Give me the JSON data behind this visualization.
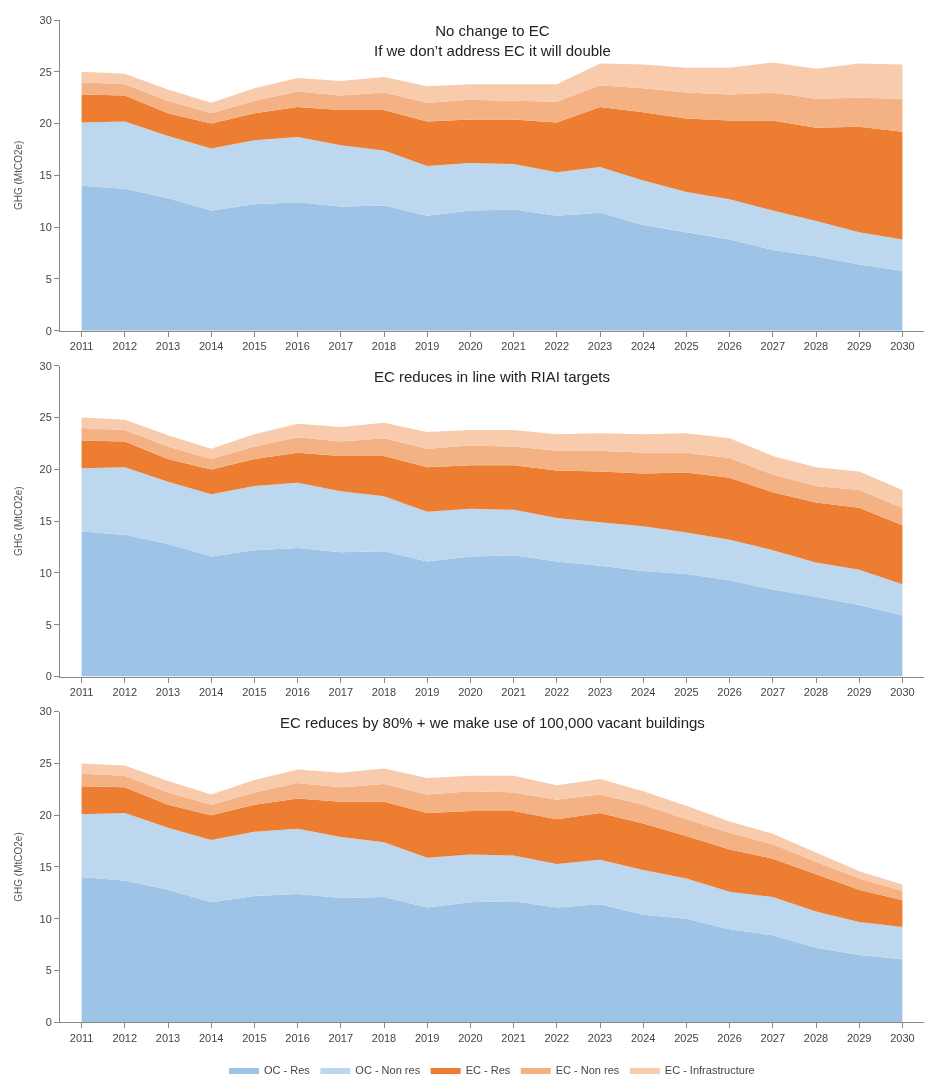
{
  "chart_data": [
    {
      "type": "area",
      "stacked": true,
      "title": "No change to EC",
      "subtitle": "If we don’t address EC it will double",
      "ylabel": "GHG (MtCO2e)",
      "ylim": [
        0,
        30
      ],
      "yticks": [
        0,
        5,
        10,
        15,
        20,
        25,
        30
      ],
      "legend": "bottom",
      "categories": [
        "2011",
        "2012",
        "2013",
        "2014",
        "2015",
        "2016",
        "2017",
        "2018",
        "2019",
        "2020",
        "2021",
        "2022",
        "2023",
        "2024",
        "2025",
        "2026",
        "2027",
        "2028",
        "2029",
        "2030"
      ],
      "series": [
        {
          "name": "OC - Res",
          "color": "#9dc3e6",
          "values": [
            14,
            13.7,
            12.8,
            11.6,
            12.2,
            12.4,
            12.0,
            12.1,
            11.1,
            11.6,
            11.7,
            11.1,
            11.4,
            10.2,
            9.5,
            8.8,
            7.8,
            7.2,
            6.4,
            5.8
          ]
        },
        {
          "name": "OC - Non res",
          "color": "#bdd7ee",
          "values": [
            6.1,
            6.5,
            6.0,
            6.0,
            6.2,
            6.3,
            5.9,
            5.3,
            4.8,
            4.6,
            4.4,
            4.2,
            4.4,
            4.3,
            3.9,
            3.9,
            3.8,
            3.4,
            3.1,
            3.0
          ]
        },
        {
          "name": "EC - Res",
          "color": "#ed7d31",
          "values": [
            2.7,
            2.5,
            2.2,
            2.4,
            2.6,
            2.9,
            3.4,
            3.9,
            4.3,
            4.2,
            4.3,
            4.8,
            5.8,
            6.6,
            7.1,
            7.6,
            8.7,
            9.0,
            10.2,
            10.4
          ]
        },
        {
          "name": "EC - Non res",
          "color": "#f4b183",
          "values": [
            1.2,
            1.1,
            1.2,
            1.0,
            1.2,
            1.5,
            1.4,
            1.7,
            1.8,
            1.9,
            1.8,
            2.0,
            2.1,
            2.3,
            2.5,
            2.5,
            2.7,
            2.8,
            2.8,
            3.2
          ]
        },
        {
          "name": "EC - Infrastructure",
          "color": "#f8cbad",
          "values": [
            1.0,
            1.0,
            1.1,
            1.0,
            1.2,
            1.3,
            1.4,
            1.5,
            1.6,
            1.5,
            1.6,
            1.7,
            2.1,
            2.3,
            2.4,
            2.6,
            2.9,
            2.9,
            3.3,
            3.3
          ]
        }
      ]
    },
    {
      "type": "area",
      "stacked": true,
      "title": "EC reduces in line with RIAI targets",
      "ylabel": "GHG (MtCO2e)",
      "ylim": [
        0,
        30
      ],
      "yticks": [
        0,
        5,
        10,
        15,
        20,
        25,
        30
      ],
      "categories": [
        "2011",
        "2012",
        "2013",
        "2014",
        "2015",
        "2016",
        "2017",
        "2018",
        "2019",
        "2020",
        "2021",
        "2022",
        "2023",
        "2024",
        "2025",
        "2026",
        "2027",
        "2028",
        "2029",
        "2030"
      ],
      "series": [
        {
          "color": "#9dc3e6",
          "values": [
            14,
            13.7,
            12.8,
            11.6,
            12.2,
            12.4,
            12.0,
            12.1,
            11.1,
            11.6,
            11.7,
            11.1,
            10.7,
            10.2,
            9.9,
            9.3,
            8.4,
            7.7,
            6.9,
            5.9
          ]
        },
        {
          "color": "#bdd7ee",
          "values": [
            6.1,
            6.5,
            6.0,
            6.0,
            6.2,
            6.3,
            5.9,
            5.3,
            4.8,
            4.6,
            4.4,
            4.2,
            4.2,
            4.3,
            4.0,
            3.9,
            3.8,
            3.3,
            3.4,
            3.0
          ]
        },
        {
          "color": "#ed7d31",
          "values": [
            2.7,
            2.5,
            2.2,
            2.4,
            2.6,
            2.9,
            3.4,
            3.9,
            4.3,
            4.2,
            4.3,
            4.6,
            4.9,
            5.1,
            5.8,
            6.0,
            5.6,
            5.8,
            6.0,
            5.7
          ]
        },
        {
          "color": "#f4b183",
          "values": [
            1.2,
            1.1,
            1.2,
            1.0,
            1.2,
            1.5,
            1.4,
            1.7,
            1.8,
            1.9,
            1.8,
            1.9,
            2.0,
            2.0,
            1.9,
            1.9,
            1.7,
            1.6,
            1.7,
            1.7
          ]
        },
        {
          "color": "#f8cbad",
          "values": [
            1.0,
            1.0,
            1.1,
            1.0,
            1.2,
            1.3,
            1.4,
            1.5,
            1.6,
            1.5,
            1.6,
            1.6,
            1.7,
            1.8,
            1.9,
            1.9,
            1.8,
            1.8,
            1.8,
            1.7
          ]
        }
      ]
    },
    {
      "type": "area",
      "stacked": true,
      "title": "EC reduces by 80% + we make use of 100,000 vacant buildings",
      "ylabel": "GHG (MtCO2e)",
      "ylim": [
        0,
        30
      ],
      "yticks": [
        0,
        5,
        10,
        15,
        20,
        25,
        30
      ],
      "categories": [
        "2011",
        "2012",
        "2013",
        "2014",
        "2015",
        "2016",
        "2017",
        "2018",
        "2019",
        "2020",
        "2021",
        "2022",
        "2023",
        "2024",
        "2025",
        "2026",
        "2027",
        "2028",
        "2029",
        "2030"
      ],
      "series": [
        {
          "color": "#9dc3e6",
          "values": [
            14,
            13.7,
            12.8,
            11.6,
            12.2,
            12.4,
            12.0,
            12.1,
            11.1,
            11.6,
            11.7,
            11.1,
            11.4,
            10.4,
            10.0,
            9.0,
            8.4,
            7.2,
            6.5,
            6.1
          ]
        },
        {
          "color": "#bdd7ee",
          "values": [
            6.1,
            6.5,
            6.0,
            6.0,
            6.2,
            6.3,
            5.9,
            5.3,
            4.8,
            4.6,
            4.4,
            4.2,
            4.3,
            4.3,
            3.9,
            3.6,
            3.7,
            3.5,
            3.2,
            3.1
          ]
        },
        {
          "color": "#ed7d31",
          "values": [
            2.7,
            2.5,
            2.2,
            2.4,
            2.6,
            2.9,
            3.4,
            3.9,
            4.3,
            4.2,
            4.3,
            4.3,
            4.5,
            4.5,
            4.1,
            4.1,
            3.7,
            3.6,
            3.1,
            2.6
          ]
        },
        {
          "color": "#f4b183",
          "values": [
            1.2,
            1.1,
            1.2,
            1.0,
            1.2,
            1.5,
            1.4,
            1.7,
            1.8,
            1.9,
            1.8,
            1.9,
            1.8,
            1.8,
            1.6,
            1.6,
            1.4,
            1.2,
            1.1,
            0.9
          ]
        },
        {
          "color": "#f8cbad",
          "values": [
            1.0,
            1.0,
            1.1,
            1.0,
            1.2,
            1.3,
            1.4,
            1.5,
            1.6,
            1.5,
            1.6,
            1.4,
            1.5,
            1.3,
            1.3,
            1.1,
            1.0,
            0.9,
            0.7,
            0.6
          ]
        }
      ]
    }
  ]
}
